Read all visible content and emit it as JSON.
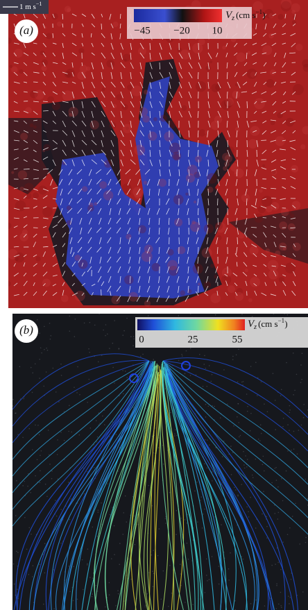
{
  "panels": [
    {
      "label": "(a)",
      "scale": {
        "text": "1 m s",
        "exp": "−1"
      },
      "colorbar": {
        "symbol": "V",
        "sub": "z",
        "unit": "(cm s",
        "exp": "−1",
        "close": ")",
        "ticks": [
          "−45",
          "−20",
          "10"
        ]
      }
    },
    {
      "label": "(b)",
      "colorbar": {
        "symbol": "V",
        "sub": "z",
        "unit": "(cm s",
        "exp": "−1",
        "close": ")",
        "ticks": [
          "0",
          "25",
          "55"
        ]
      }
    }
  ]
}
